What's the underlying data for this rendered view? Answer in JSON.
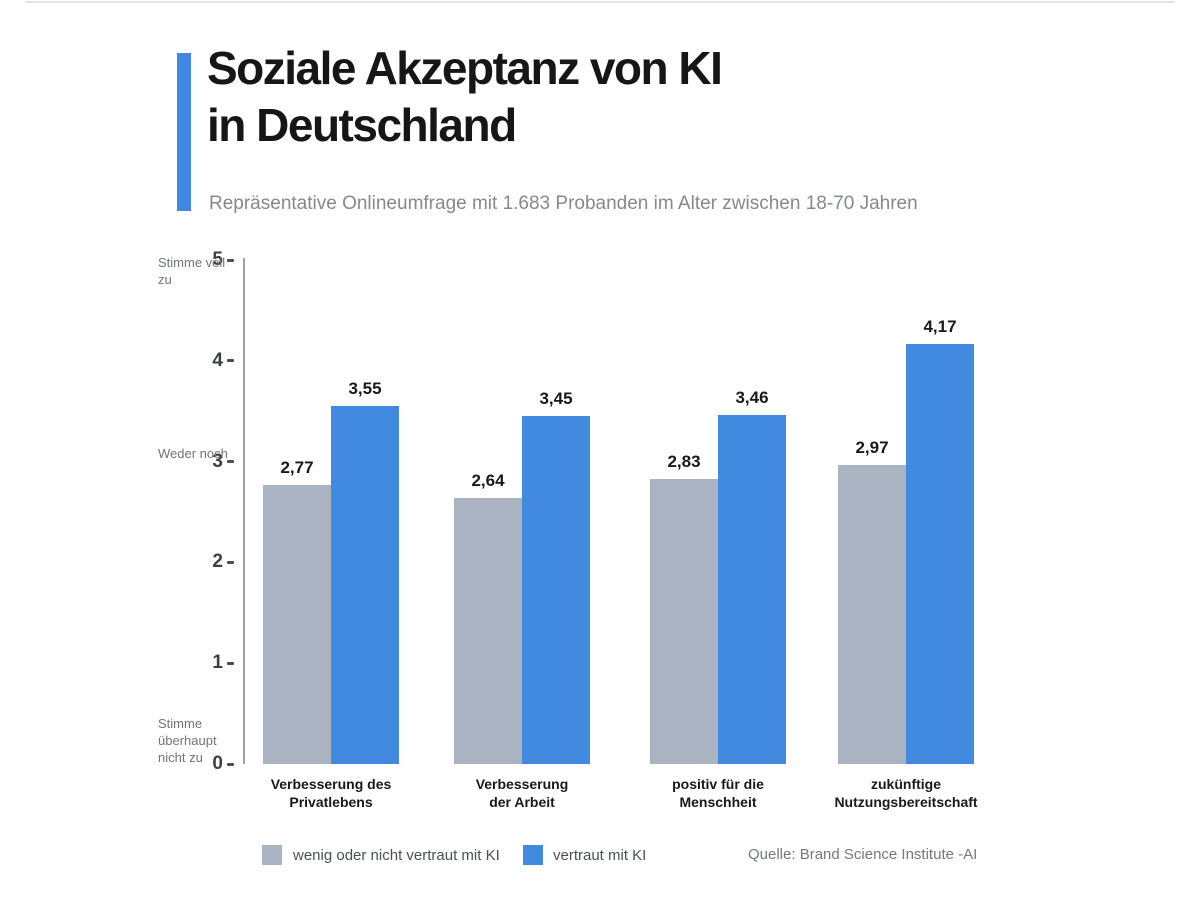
{
  "header": {
    "title_line1": "Soziale Akzeptanz von KI",
    "title_line2": "in Deutschland",
    "subtitle": "Repräsentative Onlineumfrage mit 1.683 Probanden im Alter zwischen 18-70 Jahren"
  },
  "colors": {
    "accent_blue": "#4189E2",
    "bar_blue": "#4289E0",
    "bar_gray": "#A9B3C1",
    "axis_line": "#9AA0A6"
  },
  "chart_data": {
    "type": "bar",
    "title": "Soziale Akzeptanz von KI in Deutschland",
    "subtitle": "Repräsentative Onlineumfrage mit 1.683 Probanden im Alter zwischen 18-70 Jahren",
    "categories": [
      "Verbesserung des Privatlebens",
      "Verbesserung der Arbeit",
      "positiv für die Menschheit",
      "zukünftige Nutzungsbereitschaft"
    ],
    "category_label_lines": [
      [
        "Verbesserung des",
        "Privatlebens"
      ],
      [
        "Verbesserung",
        "der Arbeit"
      ],
      [
        "positiv für die",
        "Menschheit"
      ],
      [
        "zukünftige",
        "Nutzungsbereitschaft"
      ]
    ],
    "series": [
      {
        "name": "wenig oder nicht vertraut mit KI",
        "color": "#A9B3C1",
        "values": [
          2.77,
          2.64,
          2.83,
          2.97
        ],
        "labels": [
          "2,77",
          "2,64",
          "2,83",
          "2,97"
        ]
      },
      {
        "name": "vertraut mit KI",
        "color": "#4289E0",
        "values": [
          3.55,
          3.45,
          3.46,
          4.17
        ],
        "labels": [
          "3,55",
          "3,45",
          "3,46",
          "4,17"
        ]
      }
    ],
    "ylim": [
      0,
      5
    ],
    "yticks": [
      5,
      4,
      3,
      2,
      1,
      0
    ],
    "y_axis_annotations": [
      {
        "text": "Stimme voll zu",
        "value": 5
      },
      {
        "text": "Weder noch",
        "value": 3
      },
      {
        "text": "Stimme überhaupt nicht zu",
        "value": 0
      }
    ],
    "grid": false,
    "legend_position": "bottom"
  },
  "footer": {
    "source": "Quelle: Brand Science Institute -AI"
  }
}
